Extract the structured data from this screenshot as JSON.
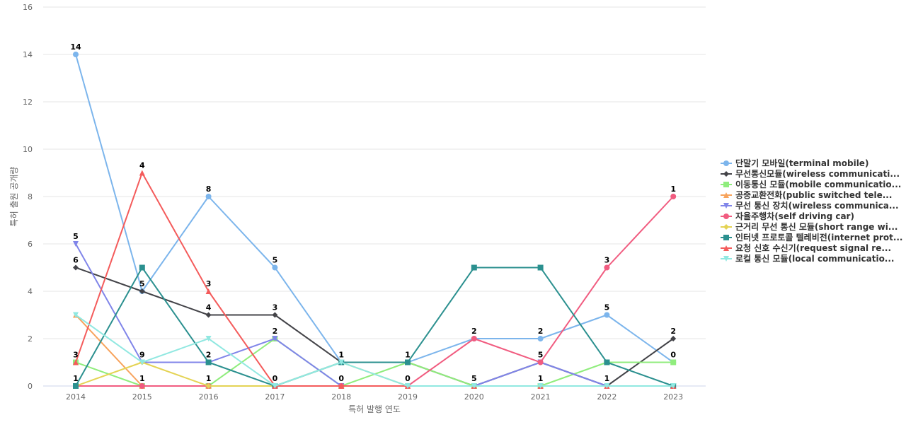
{
  "chart_data": {
    "type": "line",
    "title": "",
    "xlabel": "특허 발행 연도",
    "ylabel": "특허 출원 공개량",
    "ylim": [
      0,
      16
    ],
    "yticks": [
      0,
      2,
      4,
      6,
      8,
      10,
      12,
      14,
      16
    ],
    "categories": [
      "2014",
      "2015",
      "2016",
      "2017",
      "2018",
      "2019",
      "2020",
      "2021",
      "2022",
      "2023"
    ],
    "grid": true,
    "legend_position": "right",
    "series": [
      {
        "name": "단말기 모바일(terminal mobile)",
        "color": "#7cb5ec",
        "marker": "circle",
        "values": [
          14,
          4,
          8,
          5,
          1,
          1,
          2,
          2,
          3,
          1
        ],
        "labeled": true
      },
      {
        "name": "무선통신모듈(wireless communicati...",
        "color": "#434348",
        "marker": "diamond",
        "values": [
          5,
          4,
          3,
          3,
          1,
          1,
          0,
          1,
          0,
          2
        ],
        "labeled": true
      },
      {
        "name": "이동통신 모듈(mobile communicatio...",
        "color": "#90ed7d",
        "marker": "square",
        "values": [
          1,
          0,
          0,
          2,
          0,
          1,
          0,
          0,
          1,
          1
        ],
        "labeled": false
      },
      {
        "name": "공중교환전화(public switched tele...",
        "color": "#f7a35c",
        "marker": "triangle",
        "values": [
          3,
          0,
          0,
          0,
          0,
          0,
          0,
          0,
          0,
          0
        ],
        "labeled": false
      },
      {
        "name": "무선 통신 장치(wireless communica...",
        "color": "#8085e9",
        "marker": "triangle-down",
        "values": [
          6,
          1,
          1,
          2,
          0,
          0,
          0,
          1,
          0,
          0
        ],
        "labeled": true
      },
      {
        "name": "자율주행차(self driving car)",
        "color": "#f15c80",
        "marker": "circle",
        "values": [
          0,
          0,
          0,
          0,
          0,
          0,
          2,
          1,
          5,
          8
        ],
        "labeled": true
      },
      {
        "name": "근거리 무선 통신 모듈(short range wi...",
        "color": "#e4d354",
        "marker": "diamond",
        "values": [
          0,
          1,
          0,
          0,
          1,
          0,
          0,
          0,
          0,
          0
        ],
        "labeled": false
      },
      {
        "name": "인터넷 프로토콜 텔레비전(internet prot...",
        "color": "#2b908f",
        "marker": "square",
        "values": [
          0,
          5,
          1,
          0,
          1,
          1,
          5,
          5,
          1,
          0
        ],
        "labeled": false
      },
      {
        "name": "요청 신호 수신기(request signal re...",
        "color": "#f45b5b",
        "marker": "triangle",
        "values": [
          1,
          9,
          4,
          0,
          0,
          0,
          0,
          0,
          0,
          0
        ],
        "labeled": true
      },
      {
        "name": "로컬 통신 모듈(local communicatio...",
        "color": "#91e8e1",
        "marker": "triangle-down",
        "values": [
          3,
          1,
          2,
          0,
          1,
          0,
          0,
          0,
          0,
          0
        ],
        "labeled": false
      }
    ],
    "point_labels": [
      [
        "14",
        "4",
        "8",
        "5",
        "1",
        "1",
        "2",
        "2",
        "3",
        "1"
      ],
      [
        "5",
        "5",
        "3",
        "3",
        "0",
        "0",
        "5",
        "5",
        "5",
        "2"
      ],
      [
        "6",
        "9",
        "4",
        "2",
        "",
        "",
        "0",
        "1",
        "1",
        "0"
      ],
      [
        "3",
        "1",
        "2",
        "0",
        "",
        "",
        "",
        "0",
        "0",
        ""
      ],
      [
        "1",
        "0",
        "1",
        "",
        "",
        "",
        "",
        "",
        "",
        ""
      ],
      [
        "0",
        "",
        "0",
        "",
        "",
        "",
        "",
        "",
        "",
        ""
      ]
    ]
  }
}
